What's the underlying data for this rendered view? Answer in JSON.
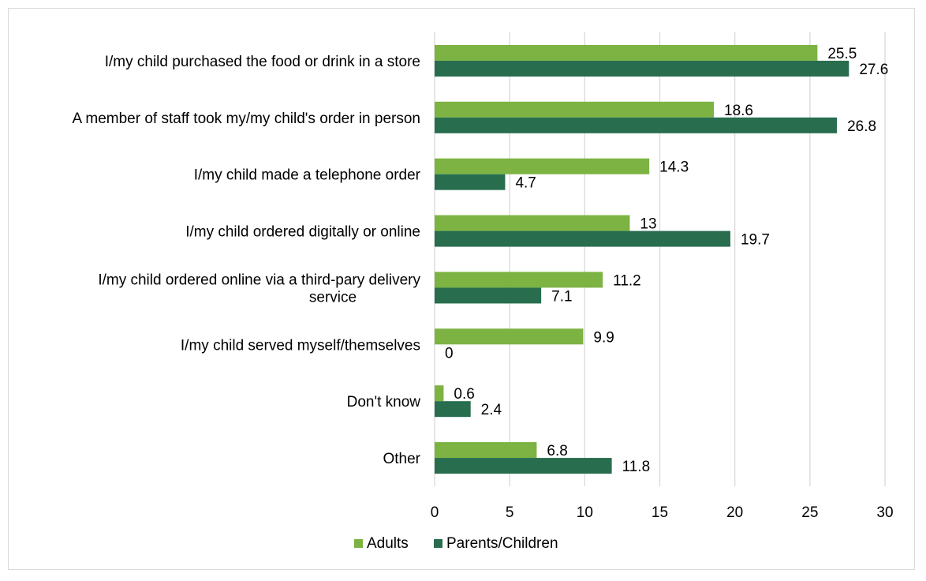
{
  "chart_data": {
    "type": "bar",
    "orientation": "horizontal",
    "title": "",
    "xlabel": "",
    "ylabel": "",
    "categories": [
      [
        "I/my child purchased the food or drink in a store"
      ],
      [
        "A member of staff took my/my child's order in person"
      ],
      [
        "I/my child made a telephone order"
      ],
      [
        "I/my child ordered digitally or online"
      ],
      [
        "I/my child ordered online via a third-pary delivery",
        "service"
      ],
      [
        "I/my child served myself/themselves"
      ],
      [
        "Don't know"
      ],
      [
        "Other"
      ]
    ],
    "series": [
      {
        "name": "Adults",
        "color": "#7cb342",
        "values": [
          25.5,
          18.6,
          14.3,
          13,
          11.2,
          9.9,
          0.6,
          6.8
        ]
      },
      {
        "name": "Parents/Children",
        "color": "#276d4e",
        "values": [
          27.6,
          26.8,
          4.7,
          19.7,
          7.1,
          0,
          2.4,
          11.8
        ]
      }
    ],
    "xlim": [
      0,
      30
    ],
    "xticks": [
      0,
      5,
      10,
      15,
      20,
      25,
      30
    ],
    "grid": true,
    "legend": "bottom-center"
  }
}
